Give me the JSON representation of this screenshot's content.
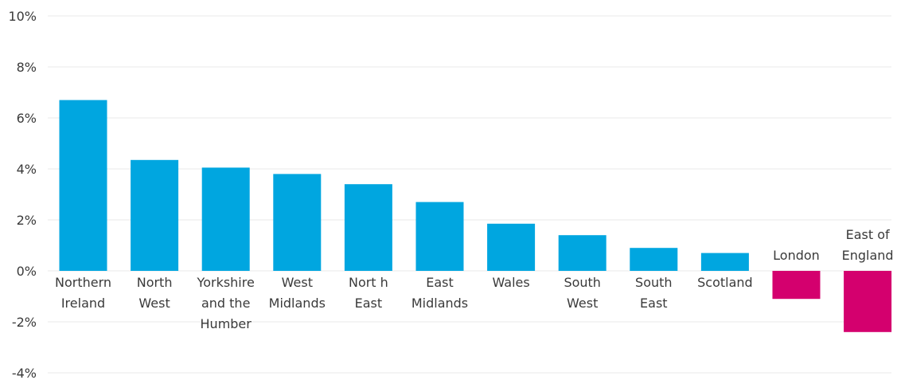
{
  "chart_data": {
    "type": "bar",
    "title": "",
    "xlabel": "",
    "ylabel": "",
    "ylim": [
      -4,
      10
    ],
    "yticks": [
      10,
      8,
      6,
      4,
      2,
      0,
      -2,
      -4
    ],
    "ytick_labels": [
      "10%",
      "8%",
      "6%",
      "4%",
      "2%",
      "0%",
      "-2%",
      "-4%"
    ],
    "grid": true,
    "positive_color": "#00a6e0",
    "negative_color": "#d4006e",
    "categories": [
      [
        "Northern",
        "Ireland"
      ],
      [
        "North",
        "West"
      ],
      [
        "Yorkshire",
        "and the",
        "Humber"
      ],
      [
        "West",
        "Midlands"
      ],
      [
        "Nort h",
        "East"
      ],
      [
        "East",
        "Midlands"
      ],
      [
        "Wales"
      ],
      [
        "South",
        "West"
      ],
      [
        "South",
        "East"
      ],
      [
        "Scotland"
      ],
      [
        "London"
      ],
      [
        "East of",
        "England"
      ]
    ],
    "values": [
      6.7,
      4.35,
      4.05,
      3.8,
      3.4,
      2.7,
      1.85,
      1.4,
      0.9,
      0.7,
      -1.1,
      -2.4
    ]
  }
}
